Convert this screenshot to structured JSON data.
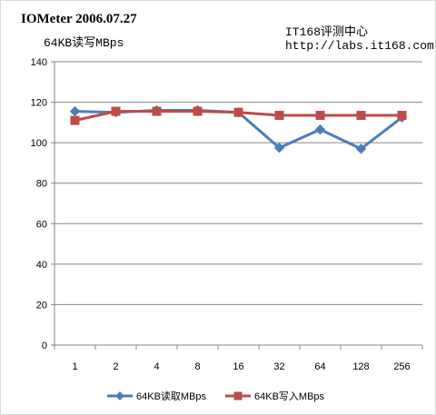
{
  "header": {
    "title": "IOMeter 2006.07.27",
    "subtitle": "64KB读写MBps",
    "site_name": "IT168评测中心",
    "site_url": "http://labs.it168.com"
  },
  "chart_data": {
    "type": "line",
    "title": "",
    "xlabel": "",
    "ylabel": "",
    "categories": [
      "1",
      "2",
      "4",
      "8",
      "16",
      "32",
      "64",
      "128",
      "256"
    ],
    "ylim": [
      0,
      140
    ],
    "yticks": [
      0,
      20,
      40,
      60,
      80,
      100,
      120,
      140
    ],
    "grid": true,
    "legend_position": "bottom",
    "series": [
      {
        "name": "64KB读取MBps",
        "values": [
          115.5,
          115.0,
          116.0,
          116.0,
          115.0,
          97.5,
          106.5,
          97.0,
          112.5
        ],
        "color": "#4a7ebb",
        "marker": "diamond"
      },
      {
        "name": "64KB写入MBps",
        "values": [
          111.0,
          115.5,
          115.5,
          115.5,
          115.0,
          113.5,
          113.5,
          113.5,
          113.5
        ],
        "color": "#be4b48",
        "marker": "square"
      }
    ]
  }
}
